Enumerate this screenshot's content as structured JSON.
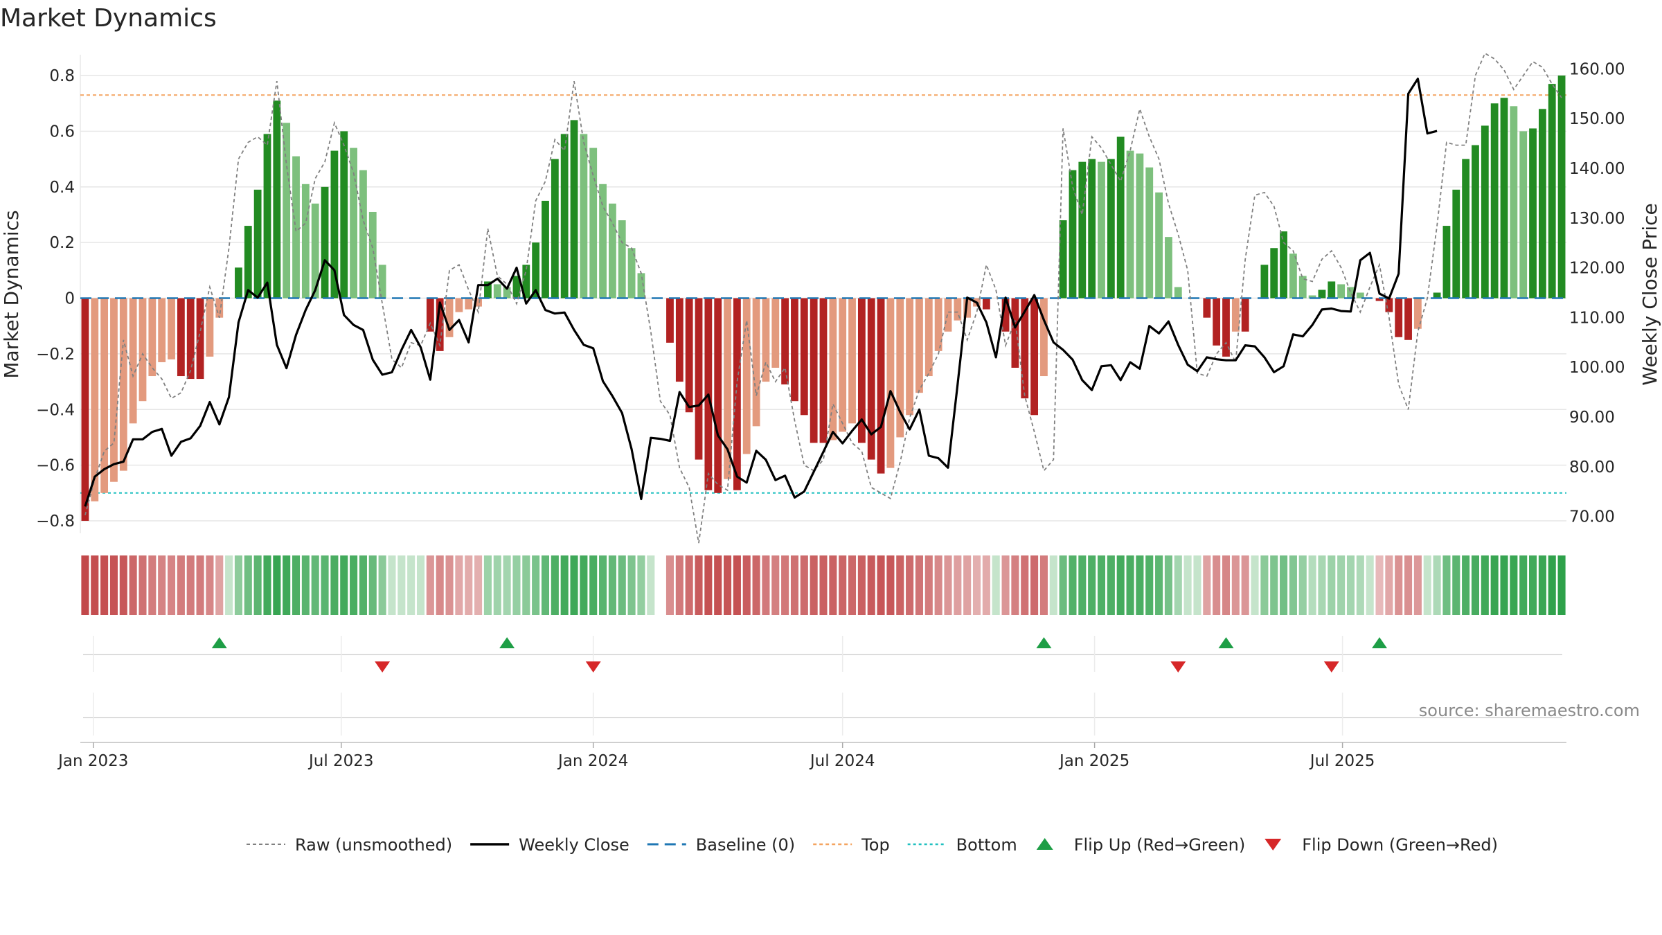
{
  "chart_data": {
    "type": "bar",
    "title": "Market Dynamics",
    "ylabel_left": "Market Dynamics",
    "ylabel_right": "Weekly Close Price",
    "ylim_left": [
      -0.82,
      0.86
    ],
    "ylim_right": [
      68,
      162
    ],
    "y_ticks_left": [
      "0.8",
      "0.6",
      "0.4",
      "0.2",
      "0",
      "−0.2",
      "−0.4",
      "−0.6",
      "−0.8"
    ],
    "y_tick_values_left": [
      0.8,
      0.6,
      0.4,
      0.2,
      0,
      -0.2,
      -0.4,
      -0.6,
      -0.8
    ],
    "y_ticks_right": [
      "70.00",
      "80.00",
      "90.00",
      "100.00",
      "110.00",
      "120.00",
      "130.00",
      "140.00",
      "150.00",
      "160.00"
    ],
    "y_tick_values_right": [
      70,
      80,
      90,
      100,
      110,
      120,
      130,
      140,
      150,
      160
    ],
    "x_start": "2022-12-26",
    "x_ticks": [
      {
        "label": "Jan 2023",
        "date": "2023-01-01"
      },
      {
        "label": "Jul 2023",
        "date": "2023-07-01"
      },
      {
        "label": "Jan 2024",
        "date": "2024-01-01"
      },
      {
        "label": "Jul 2024",
        "date": "2024-07-01"
      },
      {
        "label": "Jan 2025",
        "date": "2025-01-01"
      },
      {
        "label": "Jul 2025",
        "date": "2025-07-01"
      }
    ],
    "top_level": 0.73,
    "bottom_level": -0.7,
    "baseline": 0,
    "grid": true,
    "legend_position": "bottom-center",
    "colors": {
      "strong_green": "#228b22",
      "weak_green": "#7dc07d",
      "strong_red": "#b22222",
      "weak_red": "#e39a7e",
      "raw": "#808080",
      "close": "#000000",
      "baseline": "#1f77b4",
      "top": "#f4a460",
      "bottom": "#20c0c0",
      "flip_up": "#1e9e46",
      "flip_down": "#d62728"
    },
    "bars": [
      -0.8,
      -0.73,
      -0.7,
      -0.66,
      -0.62,
      -0.45,
      -0.37,
      -0.28,
      -0.23,
      -0.22,
      -0.28,
      -0.29,
      -0.29,
      -0.21,
      -0.07,
      0,
      0.11,
      0.26,
      0.39,
      0.59,
      0.71,
      0.63,
      0.51,
      0.41,
      0.34,
      0.4,
      0.53,
      0.6,
      0.54,
      0.46,
      0.31,
      0.12,
      0,
      0,
      0,
      0,
      -0.12,
      -0.19,
      -0.14,
      -0.05,
      -0.04,
      -0.03,
      0.06,
      0.05,
      0.04,
      0.08,
      0.12,
      0.2,
      0.35,
      0.5,
      0.59,
      0.64,
      0.59,
      0.54,
      0.41,
      0.34,
      0.28,
      0.18,
      0.09,
      0,
      0,
      -0.16,
      -0.3,
      -0.41,
      -0.58,
      -0.69,
      -0.7,
      -0.65,
      -0.69,
      -0.56,
      -0.46,
      -0.3,
      -0.25,
      -0.31,
      -0.37,
      -0.42,
      -0.52,
      -0.52,
      -0.51,
      -0.48,
      -0.45,
      -0.52,
      -0.58,
      -0.63,
      -0.61,
      -0.5,
      -0.42,
      -0.34,
      -0.28,
      -0.19,
      -0.12,
      -0.08,
      -0.07,
      -0.03,
      -0.04,
      0,
      -0.12,
      -0.25,
      -0.36,
      -0.42,
      -0.28,
      0,
      0.28,
      0.46,
      0.49,
      0.5,
      0.49,
      0.5,
      0.58,
      0.53,
      0.52,
      0.47,
      0.38,
      0.22,
      0.04,
      0,
      0,
      -0.07,
      -0.17,
      -0.21,
      -0.12,
      -0.12,
      0,
      0.12,
      0.18,
      0.24,
      0.16,
      0.08,
      0.01,
      0.03,
      0.06,
      0.05,
      0.04,
      0.02,
      0,
      -0.01,
      -0.05,
      -0.14,
      -0.15,
      -0.11,
      0,
      0.02,
      0.26,
      0.39,
      0.5,
      0.55,
      0.62,
      0.7,
      0.72,
      0.69,
      0.6,
      0.61,
      0.68,
      0.77,
      0.8
    ],
    "raw": [
      -0.78,
      -0.65,
      -0.55,
      -0.52,
      -0.15,
      -0.28,
      -0.2,
      -0.25,
      -0.29,
      -0.36,
      -0.34,
      -0.26,
      -0.12,
      0.04,
      -0.07,
      0.18,
      0.5,
      0.56,
      0.58,
      0.55,
      0.78,
      0.48,
      0.24,
      0.27,
      0.43,
      0.49,
      0.63,
      0.55,
      0.45,
      0.28,
      0.18,
      -0.02,
      -0.22,
      -0.25,
      -0.16,
      -0.17,
      -0.09,
      -0.17,
      0.1,
      0.12,
      0.03,
      -0.05,
      0.25,
      0.08,
      0.05,
      -0.02,
      0.1,
      0.35,
      0.42,
      0.57,
      0.53,
      0.78,
      0.56,
      0.44,
      0.33,
      0.27,
      0.2,
      0.18,
      0.09,
      -0.12,
      -0.37,
      -0.42,
      -0.61,
      -0.68,
      -0.88,
      -0.63,
      -0.67,
      -0.69,
      -0.3,
      -0.08,
      -0.35,
      -0.23,
      -0.3,
      -0.25,
      -0.44,
      -0.6,
      -0.62,
      -0.58,
      -0.38,
      -0.45,
      -0.52,
      -0.55,
      -0.68,
      -0.7,
      -0.72,
      -0.59,
      -0.43,
      -0.33,
      -0.27,
      -0.2,
      -0.05,
      -0.05,
      -0.15,
      -0.05,
      0.12,
      0.03,
      -0.17,
      -0.08,
      -0.35,
      -0.48,
      -0.62,
      -0.58,
      0.61,
      0.4,
      0.3,
      0.58,
      0.54,
      0.48,
      0.42,
      0.53,
      0.68,
      0.58,
      0.5,
      0.34,
      0.23,
      0.1,
      -0.27,
      -0.28,
      -0.2,
      -0.16,
      -0.23,
      0.14,
      0.37,
      0.38,
      0.33,
      0.2,
      0.17,
      0.07,
      0.06,
      0.14,
      0.17,
      0.11,
      0.02,
      -0.05,
      0.04,
      0.12,
      -0.07,
      -0.31,
      -0.4,
      -0.12,
      0,
      0.26,
      0.56,
      0.55,
      0.55,
      0.8,
      0.88,
      0.86,
      0.82,
      0.75,
      0.8,
      0.85,
      0.83,
      0.77,
      0.72
    ],
    "weekly_close": [
      72,
      78,
      79.5,
      80.5,
      81,
      85.5,
      85.5,
      87,
      87.6,
      82.2,
      85,
      85.7,
      88.2,
      93,
      88.5,
      94,
      109,
      115.5,
      114,
      117,
      104.5,
      99.8,
      106.5,
      111.5,
      115.5,
      121.5,
      119.5,
      110.5,
      108.5,
      107.5,
      101.5,
      98.5,
      99,
      103.5,
      107.5,
      104,
      97.5,
      113,
      107.5,
      109.5,
      105,
      116.5,
      116.5,
      117.8,
      115.8,
      120,
      112.8,
      115.5,
      111.5,
      110.8,
      111,
      107.5,
      104.5,
      103.8,
      97.2,
      94.2,
      90.8,
      83.5,
      73.5,
      85.8,
      85.6,
      85.2,
      95,
      92,
      92.3,
      94.5,
      86.3,
      83.5,
      78,
      76.8,
      83.2,
      81.4,
      77.3,
      78.2,
      73.8,
      75,
      79,
      83,
      87,
      84.7,
      87.2,
      89.5,
      86.5,
      88,
      95.2,
      91,
      87.5,
      91.5,
      82.2,
      81.7,
      79.8,
      96.5,
      114,
      113,
      109,
      102,
      114,
      108,
      111.2,
      114.5,
      109.5,
      105,
      103.5,
      101.5,
      97.4,
      95.4,
      100.2,
      100.4,
      97.4,
      101,
      99.7,
      108.3,
      106.8,
      109.2,
      104.5,
      100.5,
      99.2,
      102,
      101.6,
      101.4,
      101.4,
      104.4,
      104.2,
      102,
      99,
      100.2,
      106.6,
      106.2,
      108.5,
      111.6,
      111.8,
      111.3,
      111.2,
      121.5,
      123,
      114.8,
      113.8,
      118.8,
      155,
      158,
      147,
      147.5
    ]
  },
  "heat_strip": {
    "gap_after_week": 60
  },
  "flip_events": {
    "up_weeks": [
      14,
      44,
      100,
      119,
      135
    ],
    "down_weeks": [
      31,
      53,
      114,
      130
    ]
  },
  "source": "source: sharemaestro.com",
  "legend": [
    {
      "label": "Raw (unsmoothed)",
      "kind": "raw"
    },
    {
      "label": "Weekly Close",
      "kind": "close"
    },
    {
      "label": "Baseline (0)",
      "kind": "baseline"
    },
    {
      "label": "Top",
      "kind": "top"
    },
    {
      "label": "Bottom",
      "kind": "bottom"
    },
    {
      "label": "Flip Up (Red→Green)",
      "kind": "flip_up"
    },
    {
      "label": "Flip Down (Green→Red)",
      "kind": "flip_down"
    }
  ]
}
